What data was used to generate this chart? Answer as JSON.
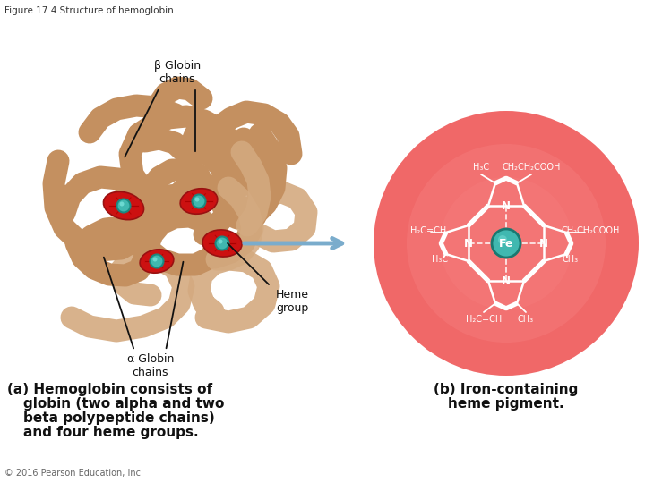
{
  "title": "Figure 17.4 Structure of hemoglobin.",
  "title_fontsize": 7.5,
  "title_color": "#333333",
  "bg_color": "#ffffff",
  "label_beta": "β Globin\nchains",
  "label_alpha": "α Globin\nchains",
  "label_heme": "Heme\ngroup",
  "caption_a_line1": "(a) Hemoglobin consists of",
  "caption_a_line2": "globin (two alpha and two",
  "caption_a_line3": "beta polypeptide chains)",
  "caption_a_line4": "and four heme groups.",
  "caption_b_line1": "(b) Iron-containing",
  "caption_b_line2": "heme pigment.",
  "copyright": "© 2016 Pearson Education, Inc.",
  "caption_fontsize": 11,
  "copyright_fontsize": 7,
  "annotation_fontsize": 9,
  "globin_dark": "#c49060",
  "globin_light": "#d4aa80",
  "heme_disk_color": "#cc1111",
  "heme_center_color": "#40b8b0",
  "arrow_color": "#7aaccc",
  "big_circle_color": "#f06060",
  "fe_circle_color": "#40b8b0",
  "bond_color": "#ffffff",
  "text_color": "#111111",
  "nitrogen_color": "#1515bb"
}
